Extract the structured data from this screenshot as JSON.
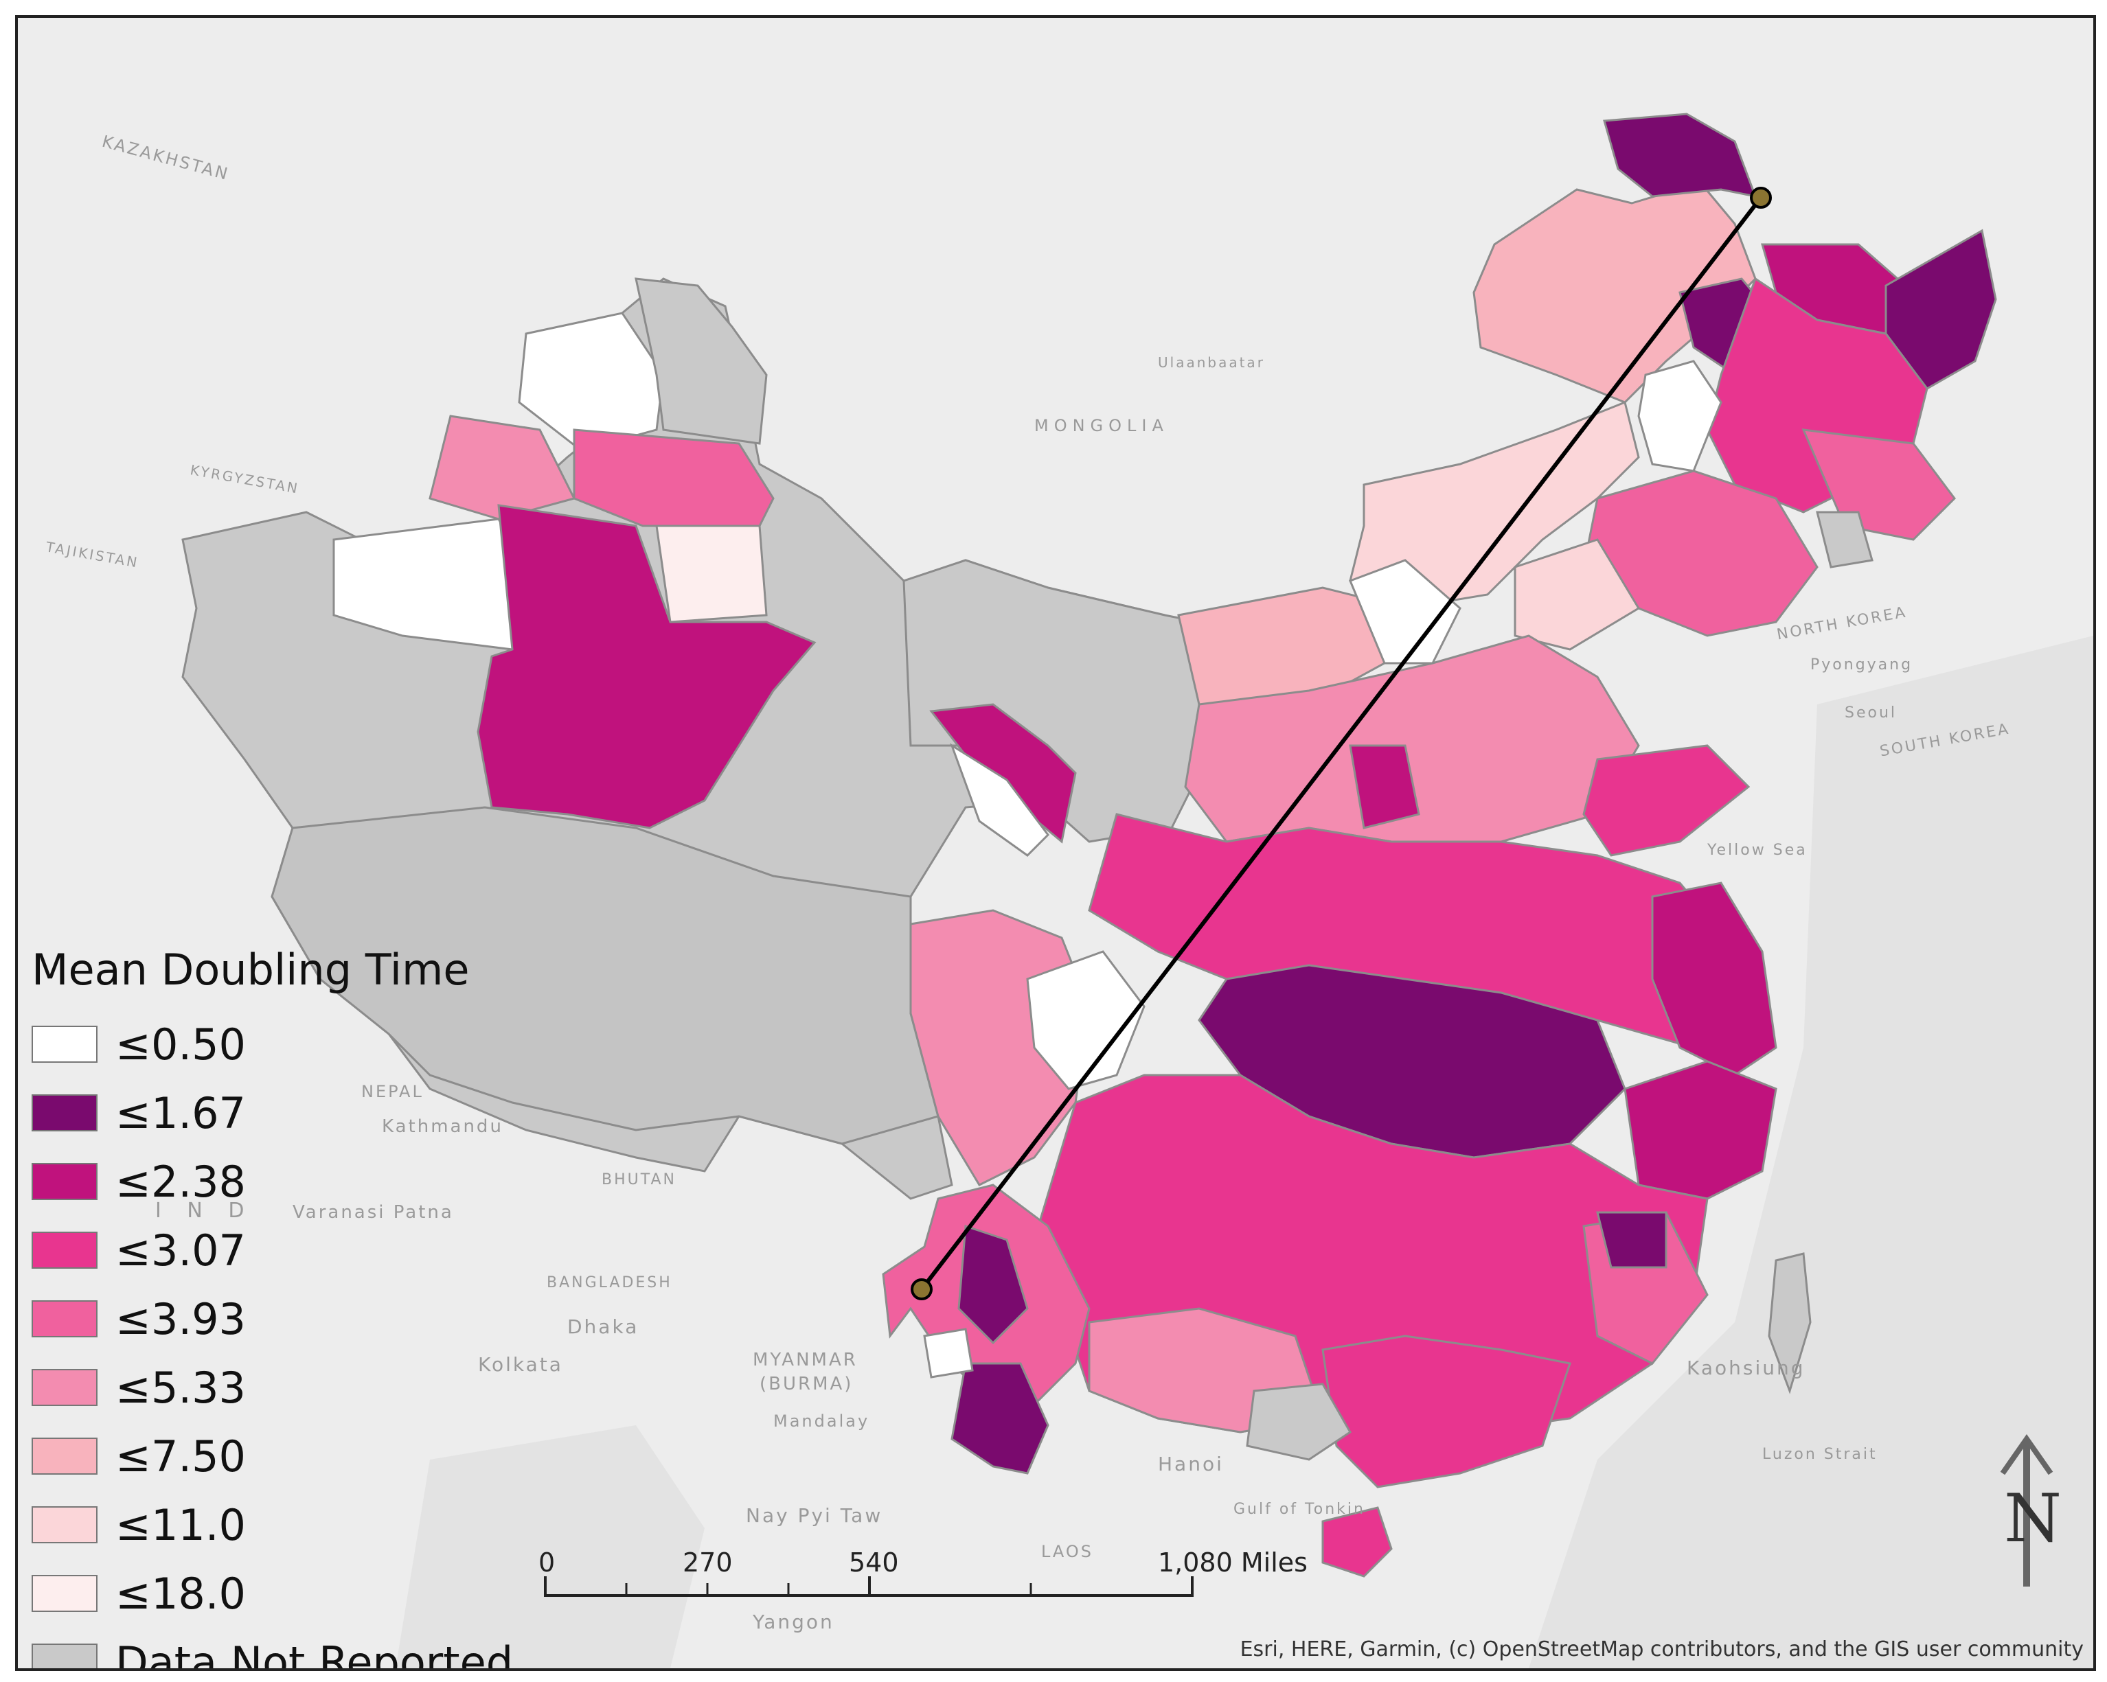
{
  "legend": {
    "title": "Mean Doubling Time",
    "classes": [
      {
        "label": "≤0.50",
        "color": "#ffffff"
      },
      {
        "label": "≤1.67",
        "color": "#7a0a6e"
      },
      {
        "label": "≤2.38",
        "color": "#c0127d"
      },
      {
        "label": "≤3.07",
        "color": "#e8358f"
      },
      {
        "label": "≤3.93",
        "color": "#f0619e"
      },
      {
        "label": "≤5.33",
        "color": "#f38cb0"
      },
      {
        "label": "≤7.50",
        "color": "#f8b3bd"
      },
      {
        "label": "≤11.0",
        "color": "#fbd6d9"
      },
      {
        "label": "≤18.0",
        "color": "#fdeeee"
      },
      {
        "label": "Data Not Reported",
        "color": "#c9c9c9"
      }
    ]
  },
  "basemap_labels": {
    "kazakhstan": "KAZAKHSTAN",
    "mongolia": "MONGOLIA",
    "kyrgyzstan": "KYRGYZSTAN",
    "tajikistan": "TAJIKISTAN",
    "nepal": "NEPAL",
    "kathmandu": "Kathmandu",
    "bhutan": "BHUTAN",
    "bangladesh": "BANGLADESH",
    "dhaka": "Dhaka",
    "kolkata": "Kolkata",
    "myanmar": "MYANMAR",
    "burma": "(BURMA)",
    "mandalay": "Mandalay",
    "hanoi": "Hanoi",
    "laos": "LAOS",
    "nay_pyi_taw": "Nay Pyi Taw",
    "north_korea": "NORTH KOREA",
    "south_korea": "SOUTH KOREA",
    "pyongyang": "Pyongyang",
    "seoul": "Seoul",
    "yellow_sea": "Yellow Sea",
    "ulaanbaatar": "Ulaanbaatar",
    "varanasi": "Varanasi Patna",
    "luzon_strait": "Luzon Strait",
    "kaohsiung": "Kaohsiung",
    "gulf": "Gulf of Tonkin",
    "yangon": "Yangon",
    "india": "I N D"
  },
  "scale_bar": {
    "ticks": [
      "0",
      "270",
      "540",
      "1,080 Miles"
    ]
  },
  "north_arrow": {
    "label": "N"
  },
  "attribution": "Esri, HERE, Garmin, (c) OpenStreetMap contributors, and the GIS user community",
  "colors": {
    "background": "#ededed",
    "land_outline": "#9a9a9a",
    "line": "#000000",
    "point": "#8b7431"
  }
}
